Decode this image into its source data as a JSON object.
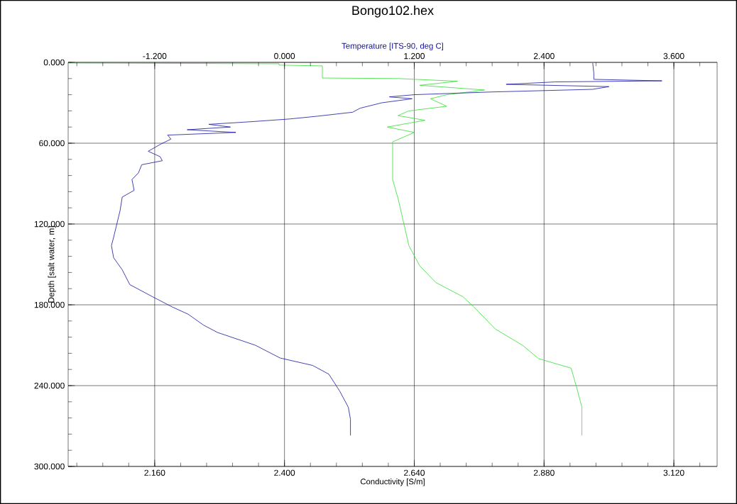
{
  "chart_data": {
    "type": "line",
    "title": "Bongo102.hex",
    "xlabel": "Conductivity [S/m]",
    "x2label": "Temperature [ITS-90, deg C]",
    "ylabel": "Depth [salt water, m]",
    "xlim": [
      2.0,
      3.2
    ],
    "xticks": [
      {
        "value": 2.16,
        "label": "2.160"
      },
      {
        "value": 2.4,
        "label": "2.400"
      },
      {
        "value": 2.64,
        "label": "2.640"
      },
      {
        "value": 2.88,
        "label": "2.880"
      },
      {
        "value": 3.12,
        "label": "3.120"
      }
    ],
    "x2lim": [
      -2.0,
      4.0
    ],
    "x2ticks": [
      {
        "value": -1.2,
        "label": "-1.200"
      },
      {
        "value": 0,
        "label": "0.000"
      },
      {
        "value": 1.2,
        "label": "1.200"
      },
      {
        "value": 2.4,
        "label": "2.400"
      },
      {
        "value": 3.6,
        "label": "3.600"
      }
    ],
    "ylim": [
      300,
      0
    ],
    "yticks": [
      {
        "value": 0,
        "label": "0.000"
      },
      {
        "value": 60,
        "label": "60.000"
      },
      {
        "value": 120,
        "label": "120.000"
      },
      {
        "value": 180,
        "label": "180.000"
      },
      {
        "value": 240,
        "label": "240.000"
      },
      {
        "value": 300,
        "label": "300.000"
      }
    ],
    "grid": true,
    "line_style": "solid",
    "series": [
      {
        "color": "#1414a0",
        "axis": "x2",
        "x": [
          2.85,
          2.86,
          2.86,
          3.49,
          2.5,
          2.05,
          3.0,
          2.85,
          1.9,
          1.2,
          0.97,
          1.18,
          0.9,
          0.7,
          0.63,
          0.3,
          0.05,
          -0.3,
          -0.7,
          -0.5,
          -0.9,
          -0.45,
          -1.08,
          -1.05,
          -1.14,
          -1.26,
          -1.15,
          -1.13,
          -1.32,
          -1.35,
          -1.41,
          -1.39,
          -1.5,
          -1.52,
          -1.55,
          -1.58,
          -1.6,
          -1.58,
          -1.5,
          -1.43,
          -1.22,
          -1.04,
          -0.89,
          -0.75,
          -0.62,
          -0.27,
          -0.04,
          0.26,
          0.41,
          0.51,
          0.59,
          0.61,
          0.61
        ],
        "values": [
          0.5,
          8,
          12.6,
          13.7,
          14.5,
          16.3,
          18,
          20,
          22,
          24,
          25.6,
          27,
          30,
          34,
          37,
          40,
          42,
          44,
          46,
          48,
          50,
          52,
          54,
          57,
          60.5,
          66,
          70,
          73,
          76,
          82,
          87,
          95,
          100,
          110,
          120,
          130,
          136,
          145,
          154,
          165,
          174,
          181.5,
          187,
          195,
          200.5,
          210,
          219.5,
          225,
          231.5,
          244,
          256,
          265,
          277
        ]
      },
      {
        "color": "#33dd33",
        "x": [
          2.0,
          2.39,
          2.39,
          2.47,
          2.47,
          2.61,
          2.72,
          2.65,
          2.77,
          2.7,
          2.67,
          2.7,
          2.63,
          2.61,
          2.66,
          2.59,
          2.64,
          2.6,
          2.6,
          2.61,
          2.62,
          2.63,
          2.65,
          2.68,
          2.73,
          2.75,
          2.79,
          2.84,
          2.87,
          2.93,
          2.94,
          2.95,
          2.95
        ],
        "values": [
          0.5,
          1,
          2,
          2.6,
          11.6,
          12,
          14,
          17,
          20.5,
          24,
          27,
          32.6,
          36,
          39.5,
          43,
          48,
          52,
          59,
          87,
          101,
          118.5,
          136,
          151,
          163.5,
          174,
          181.5,
          198,
          210,
          220,
          227,
          241,
          256,
          277
        ]
      }
    ]
  }
}
